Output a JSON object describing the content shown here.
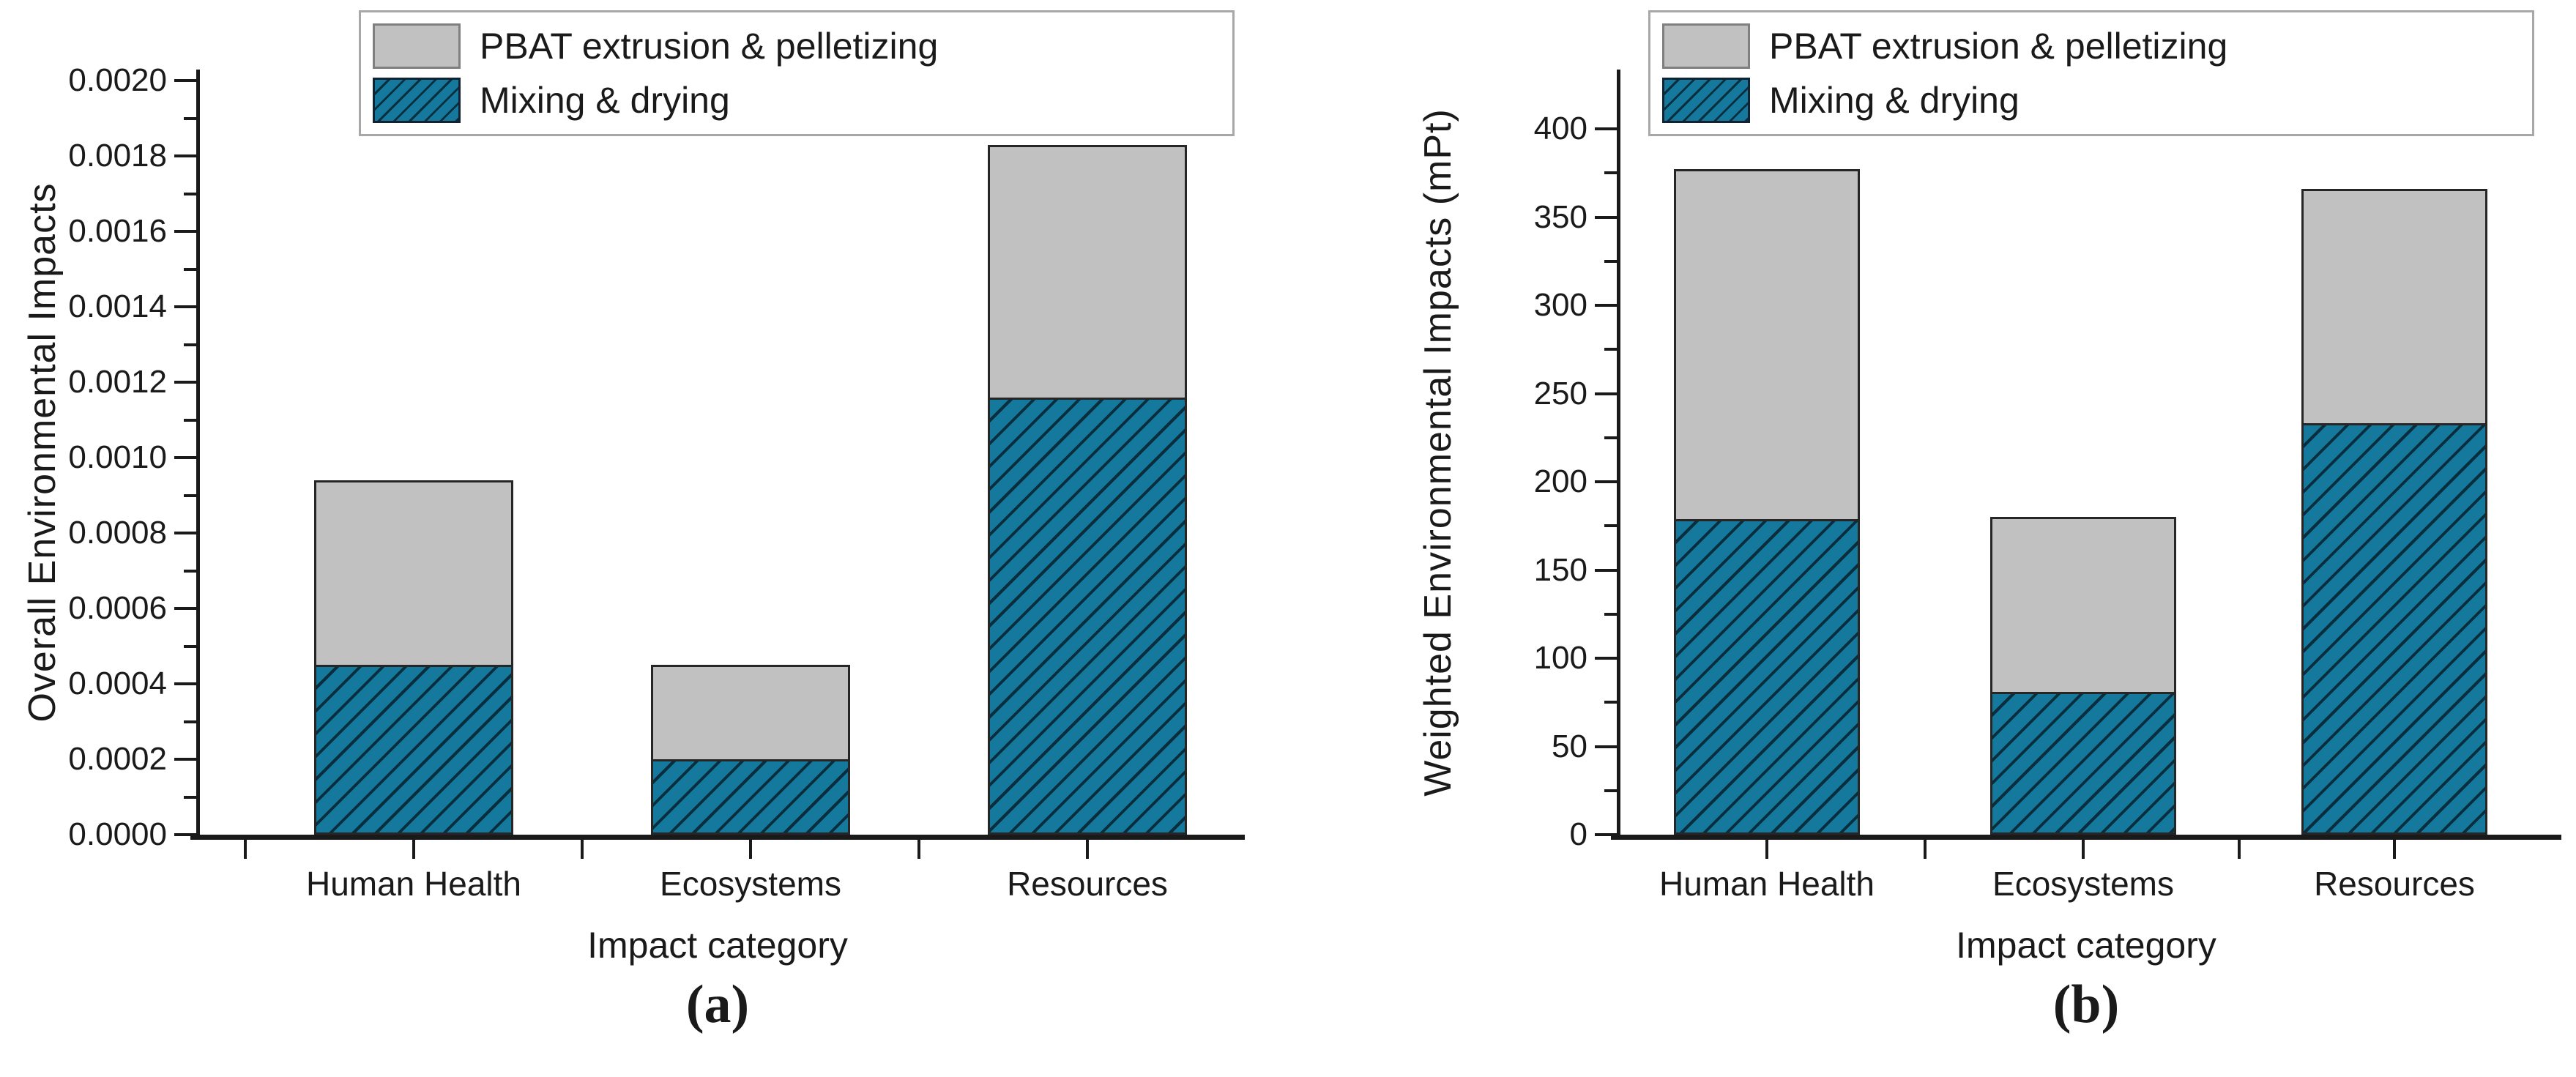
{
  "figure": {
    "background": "#ffffff",
    "colors": {
      "bar_teal": "#15799E",
      "bar_teal_hatch": "#082A39",
      "bar_gray": "#C1C1C1",
      "bar_border": "#262626",
      "axis": "#1a1a1a",
      "legend_border": "#a8a8a8"
    },
    "legend": {
      "items": [
        {
          "label": "PBAT extrusion & pelletizing",
          "swatch": "gray-solid"
        },
        {
          "label": "Mixing & drying",
          "swatch": "teal-diagonal-hatch"
        }
      ]
    }
  },
  "chart_data": [
    {
      "id": "a",
      "type": "bar",
      "stacked": true,
      "caption": "(a)",
      "ylabel": "Overall Environmental Impacts",
      "xlabel": "Impact category",
      "categories": [
        "Human Health",
        "Ecosystems",
        "Resources"
      ],
      "series": [
        {
          "name": "Mixing & drying",
          "values": [
            0.00045,
            0.0002,
            0.00116
          ]
        },
        {
          "name": "PBAT extrusion & pelletizing",
          "values": [
            0.00049,
            0.00025,
            0.00067
          ]
        }
      ],
      "totals": [
        0.00094,
        0.00045,
        0.00183
      ],
      "ylim": [
        0,
        0.002
      ],
      "ytick_step": 0.0002,
      "yminor_step": 0.0001,
      "ytick_decimals": 4,
      "grid": false,
      "legend_position": "top"
    },
    {
      "id": "b",
      "type": "bar",
      "stacked": true,
      "caption": "(b)",
      "ylabel": "Weighted Environmental Impacts (mPt)",
      "xlabel": "Impact category",
      "categories": [
        "Human Health",
        "Ecosystems",
        "Resources"
      ],
      "series": [
        {
          "name": "Mixing & drying",
          "values": [
            179,
            81,
            233
          ]
        },
        {
          "name": "PBAT extrusion & pelletizing",
          "values": [
            198,
            99,
            133
          ]
        }
      ],
      "totals": [
        377,
        180,
        366
      ],
      "ylim": [
        0,
        400
      ],
      "ytick_step": 50,
      "yminor_step": 25,
      "ytick_decimals": 0,
      "grid": false,
      "legend_position": "top"
    }
  ]
}
